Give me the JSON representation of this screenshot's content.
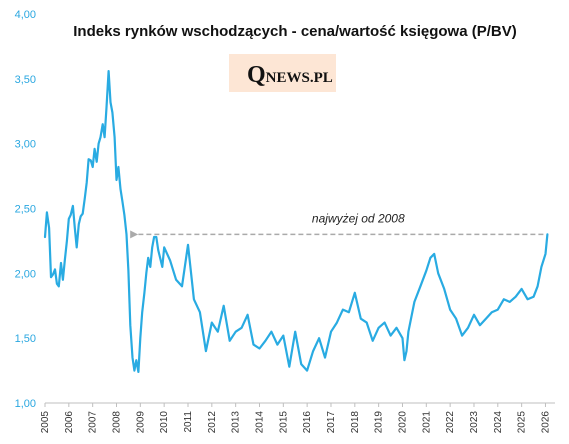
{
  "chart_data": {
    "type": "line",
    "title": "Indeks rynków wschodzących - cena/wartość księgowa (P/BV)",
    "xlabel": "",
    "ylabel": "",
    "ylim": [
      1.0,
      4.0
    ],
    "xlim": [
      2005,
      2026.4
    ],
    "y_ticks": [
      "1,00",
      "1,50",
      "2,00",
      "2,50",
      "3,00",
      "3,50",
      "4,00"
    ],
    "x_ticks": [
      "2005",
      "2006",
      "2007",
      "2008",
      "2009",
      "2010",
      "2011",
      "2012",
      "2013",
      "2014",
      "2015",
      "2016",
      "2017",
      "2018",
      "2019",
      "2020",
      "2021",
      "2022",
      "2023",
      "2024",
      "2025",
      "2026"
    ],
    "grid": false,
    "legend": "none",
    "line_color": "#29abe2",
    "series": [
      {
        "x": [
          2005.0,
          2005.08,
          2005.17,
          2005.25,
          2005.33,
          2005.42,
          2005.5,
          2005.58,
          2005.67,
          2005.75,
          2005.83,
          2005.92,
          2006.0,
          2006.08,
          2006.17,
          2006.25,
          2006.33,
          2006.42,
          2006.5,
          2006.58,
          2006.67,
          2006.75,
          2006.83,
          2006.92,
          2007.0,
          2007.08,
          2007.17,
          2007.25,
          2007.33,
          2007.42,
          2007.5,
          2007.58,
          2007.67,
          2007.75,
          2007.83,
          2007.92,
          2008.0,
          2008.08,
          2008.17,
          2008.25,
          2008.33,
          2008.42,
          2008.5,
          2008.58,
          2008.67,
          2008.75,
          2008.83,
          2008.92,
          2009.0,
          2009.08,
          2009.17,
          2009.25,
          2009.33,
          2009.42,
          2009.5,
          2009.58,
          2009.67,
          2009.75,
          2009.83,
          2009.92,
          2010.0,
          2010.25,
          2010.5,
          2010.75,
          2011.0,
          2011.25,
          2011.5,
          2011.75,
          2012.0,
          2012.25,
          2012.5,
          2012.75,
          2013.0,
          2013.25,
          2013.5,
          2013.75,
          2014.0,
          2014.25,
          2014.5,
          2014.75,
          2015.0,
          2015.25,
          2015.5,
          2015.75,
          2016.0,
          2016.25,
          2016.5,
          2016.75,
          2017.0,
          2017.25,
          2017.5,
          2017.75,
          2018.0,
          2018.25,
          2018.5,
          2018.75,
          2019.0,
          2019.25,
          2019.5,
          2019.75,
          2020.0,
          2020.08,
          2020.17,
          2020.25,
          2020.5,
          2020.75,
          2021.0,
          2021.17,
          2021.33,
          2021.5,
          2021.75,
          2022.0,
          2022.25,
          2022.5,
          2022.75,
          2023.0,
          2023.25,
          2023.5,
          2023.75,
          2024.0,
          2024.25,
          2024.5,
          2024.75,
          2025.0,
          2025.25,
          2025.5,
          2025.67,
          2025.83,
          2026.0,
          2026.08
        ],
        "values": [
          2.28,
          2.47,
          2.35,
          1.97,
          1.99,
          2.03,
          1.92,
          1.9,
          2.08,
          1.95,
          2.1,
          2.25,
          2.42,
          2.45,
          2.52,
          2.35,
          2.2,
          2.38,
          2.44,
          2.46,
          2.58,
          2.7,
          2.88,
          2.87,
          2.82,
          2.96,
          2.86,
          3.0,
          3.05,
          3.15,
          3.05,
          3.28,
          3.56,
          3.32,
          3.24,
          3.05,
          2.72,
          2.82,
          2.65,
          2.55,
          2.45,
          2.3,
          2.02,
          1.6,
          1.35,
          1.25,
          1.33,
          1.24,
          1.5,
          1.7,
          1.85,
          2.0,
          2.12,
          2.05,
          2.2,
          2.28,
          2.28,
          2.18,
          2.12,
          2.05,
          2.2,
          2.1,
          1.95,
          1.9,
          2.22,
          1.8,
          1.7,
          1.4,
          1.62,
          1.55,
          1.75,
          1.48,
          1.55,
          1.58,
          1.68,
          1.45,
          1.42,
          1.48,
          1.55,
          1.45,
          1.52,
          1.28,
          1.55,
          1.3,
          1.25,
          1.4,
          1.5,
          1.35,
          1.55,
          1.62,
          1.72,
          1.7,
          1.85,
          1.65,
          1.62,
          1.48,
          1.58,
          1.62,
          1.52,
          1.58,
          1.5,
          1.33,
          1.4,
          1.55,
          1.78,
          1.9,
          2.02,
          2.12,
          2.15,
          2.0,
          1.88,
          1.72,
          1.65,
          1.52,
          1.58,
          1.68,
          1.6,
          1.65,
          1.7,
          1.72,
          1.8,
          1.78,
          1.82,
          1.88,
          1.8,
          1.82,
          1.9,
          2.05,
          2.15,
          2.3
        ]
      }
    ],
    "reference_level": 2.3,
    "reference_from_x": 2008.7,
    "reference_color": "#aaaaaa",
    "annotation": "najwyżej od 2008"
  },
  "logo": {
    "q": "Q",
    "rest": "NEWS.PL",
    "background": "#fde6d5"
  }
}
